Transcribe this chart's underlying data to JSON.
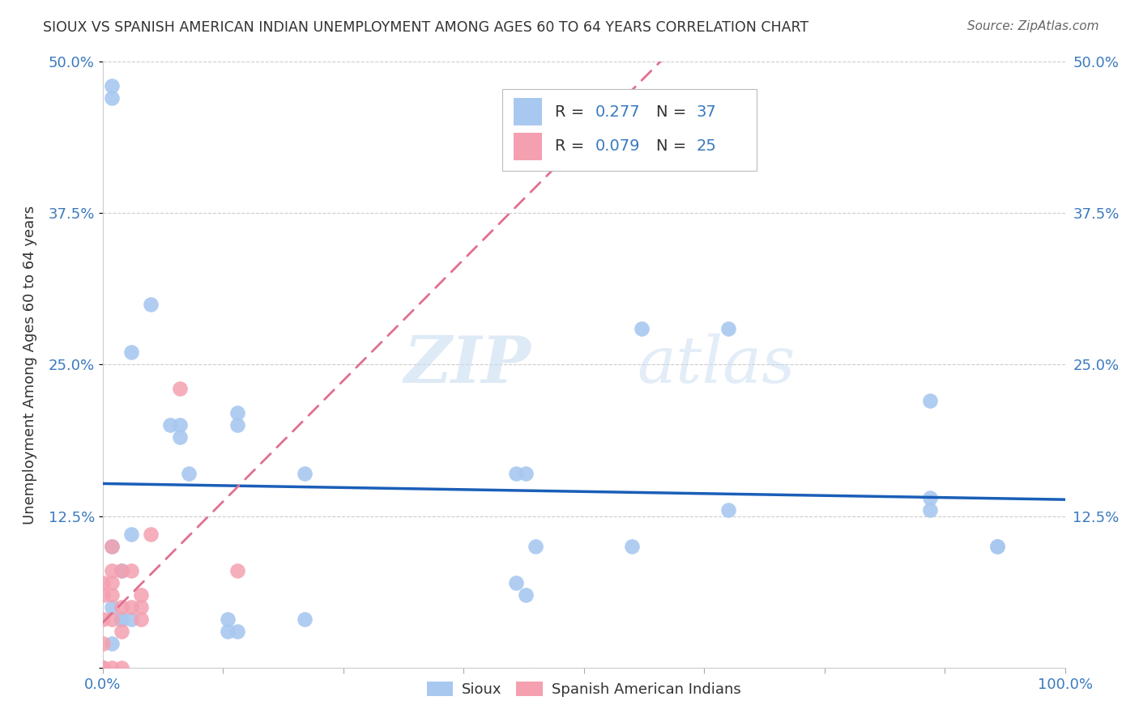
{
  "title": "SIOUX VS SPANISH AMERICAN INDIAN UNEMPLOYMENT AMONG AGES 60 TO 64 YEARS CORRELATION CHART",
  "source": "Source: ZipAtlas.com",
  "ylabel": "Unemployment Among Ages 60 to 64 years",
  "xlim": [
    0,
    1.0
  ],
  "ylim": [
    0,
    0.5
  ],
  "xticks": [
    0.0,
    0.125,
    0.25,
    0.375,
    0.5,
    0.625,
    0.75,
    0.875,
    1.0
  ],
  "xticklabels": [
    "0.0%",
    "",
    "",
    "",
    "",
    "",
    "",
    "",
    "100.0%"
  ],
  "yticks": [
    0.0,
    0.125,
    0.25,
    0.375,
    0.5
  ],
  "yticklabels": [
    "",
    "12.5%",
    "25.0%",
    "37.5%",
    "50.0%"
  ],
  "watermark_zip": "ZIP",
  "watermark_atlas": "atlas",
  "legend_r1": "0.277",
  "legend_n1": "37",
  "legend_r2": "0.079",
  "legend_n2": "25",
  "sioux_color": "#a8c8f0",
  "spanish_color": "#f4a0b0",
  "sioux_line_color": "#1a5eb8",
  "spanish_line_color": "#e07090",
  "sioux_x": [
    0.02,
    0.05,
    0.03,
    0.03,
    0.07,
    0.08,
    0.08,
    0.09,
    0.01,
    0.01,
    0.02,
    0.02,
    0.03,
    0.13,
    0.13,
    0.14,
    0.14,
    0.14,
    0.21,
    0.21,
    0.43,
    0.43,
    0.44,
    0.44,
    0.45,
    0.55,
    0.56,
    0.65,
    0.65,
    0.86,
    0.86,
    0.86,
    0.93,
    0.93,
    0.01,
    0.01,
    0.01
  ],
  "sioux_y": [
    0.08,
    0.3,
    0.26,
    0.11,
    0.2,
    0.2,
    0.19,
    0.16,
    0.1,
    0.05,
    0.04,
    0.04,
    0.04,
    0.04,
    0.03,
    0.03,
    0.2,
    0.21,
    0.16,
    0.04,
    0.07,
    0.16,
    0.16,
    0.06,
    0.1,
    0.1,
    0.28,
    0.28,
    0.13,
    0.13,
    0.22,
    0.14,
    0.1,
    0.1,
    0.47,
    0.48,
    0.02
  ],
  "spanish_x": [
    0.0,
    0.0,
    0.0,
    0.0,
    0.0,
    0.0,
    0.0,
    0.01,
    0.01,
    0.01,
    0.01,
    0.01,
    0.01,
    0.02,
    0.02,
    0.02,
    0.02,
    0.03,
    0.03,
    0.04,
    0.04,
    0.04,
    0.05,
    0.08,
    0.14
  ],
  "spanish_y": [
    0.0,
    0.0,
    0.0,
    0.02,
    0.04,
    0.06,
    0.07,
    0.0,
    0.04,
    0.06,
    0.07,
    0.08,
    0.1,
    0.0,
    0.03,
    0.05,
    0.08,
    0.05,
    0.08,
    0.04,
    0.05,
    0.06,
    0.11,
    0.23,
    0.08
  ],
  "background_color": "#ffffff",
  "grid_color": "#cccccc"
}
